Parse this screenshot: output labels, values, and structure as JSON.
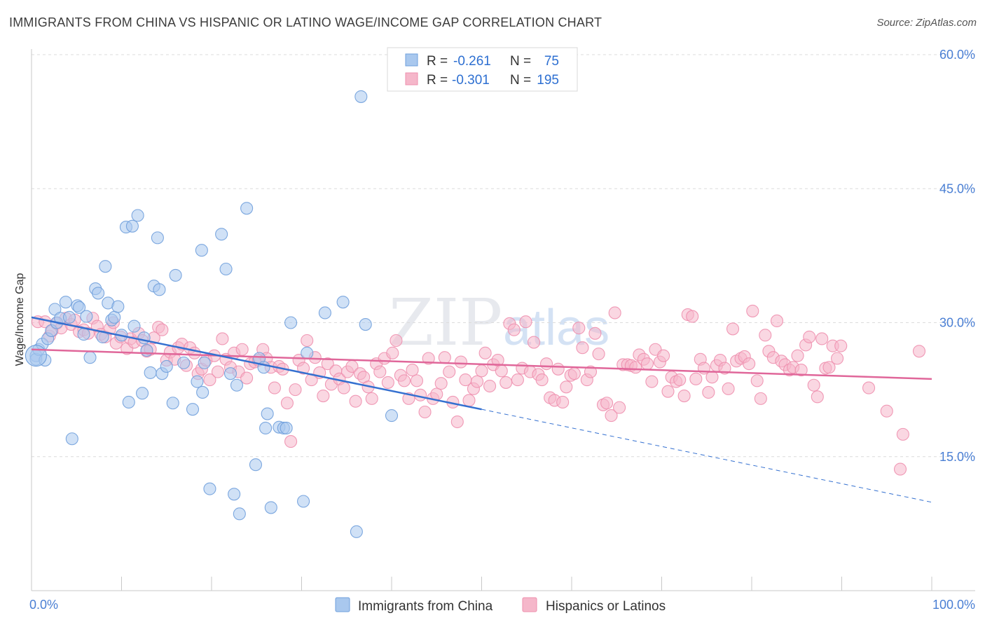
{
  "title": "IMMIGRANTS FROM CHINA VS HISPANIC OR LATINO WAGE/INCOME GAP CORRELATION CHART",
  "source": "Source: ZipAtlas.com",
  "watermark": {
    "zip": "ZIP",
    "atlas": "atlas"
  },
  "colors": {
    "china_fill": "#a9c8ee",
    "china_stroke": "#6f9fdc",
    "china_line": "#3470d0",
    "hisp_fill": "#f5b7ca",
    "hisp_stroke": "#ee8fae",
    "hisp_line": "#e0679a",
    "grid": "#dcdcdc",
    "tick_label": "#4a7fd4"
  },
  "legend": {
    "rows": [
      {
        "r_label": "R =",
        "r_value": "-0.261",
        "n_label": "N =",
        "n_value": "75"
      },
      {
        "r_label": "R =",
        "r_value": "-0.301",
        "n_label": "N =",
        "n_value": "195"
      }
    ]
  },
  "chart_data": {
    "type": "scatter",
    "title": "IMMIGRANTS FROM CHINA VS HISPANIC OR LATINO WAGE/INCOME GAP CORRELATION CHART",
    "xlabel": "",
    "ylabel": "Wage/Income Gap",
    "xlim": [
      0,
      100
    ],
    "ylim": [
      0,
      60
    ],
    "x_tick_labels": [
      "0.0%",
      "100.0%"
    ],
    "y_ticks": [
      15,
      30,
      45,
      60
    ],
    "y_tick_labels": [
      "15.0%",
      "30.0%",
      "45.0%",
      "60.0%"
    ],
    "grid": true,
    "legend_position": "top-center",
    "series": [
      {
        "name": "Immigrants from China",
        "R": -0.261,
        "N": 75,
        "trend": {
          "x": [
            0,
            50
          ],
          "y": [
            30.6,
            20.3
          ],
          "extended_x": [
            50,
            100
          ],
          "extended_y": [
            20.3,
            9.9
          ]
        },
        "points": [
          [
            0.5,
            26.3
          ],
          [
            0.5,
            25.9
          ],
          [
            0.8,
            27.0
          ],
          [
            1.2,
            27.6
          ],
          [
            1.5,
            25.8
          ],
          [
            1.8,
            28.2
          ],
          [
            2.2,
            29.1
          ],
          [
            2.6,
            31.5
          ],
          [
            2.8,
            30.0
          ],
          [
            3.2,
            30.5
          ],
          [
            3.8,
            32.3
          ],
          [
            4.2,
            30.6
          ],
          [
            4.5,
            17.0
          ],
          [
            5.1,
            31.9
          ],
          [
            5.3,
            31.7
          ],
          [
            5.8,
            28.7
          ],
          [
            6.1,
            30.7
          ],
          [
            6.5,
            26.1
          ],
          [
            7.1,
            33.8
          ],
          [
            7.4,
            33.3
          ],
          [
            7.9,
            28.4
          ],
          [
            8.2,
            36.3
          ],
          [
            8.5,
            32.2
          ],
          [
            8.9,
            30.3
          ],
          [
            9.2,
            30.6
          ],
          [
            9.6,
            31.8
          ],
          [
            10.0,
            28.6
          ],
          [
            10.5,
            40.7
          ],
          [
            10.8,
            21.1
          ],
          [
            11.2,
            40.8
          ],
          [
            11.4,
            29.6
          ],
          [
            11.8,
            42.0
          ],
          [
            12.3,
            22.1
          ],
          [
            12.5,
            28.3
          ],
          [
            12.8,
            26.9
          ],
          [
            13.2,
            24.4
          ],
          [
            13.6,
            34.1
          ],
          [
            14.0,
            39.5
          ],
          [
            14.2,
            33.7
          ],
          [
            14.5,
            24.3
          ],
          [
            15.0,
            25.1
          ],
          [
            15.7,
            21.0
          ],
          [
            16.0,
            35.3
          ],
          [
            16.9,
            25.5
          ],
          [
            17.9,
            20.3
          ],
          [
            18.4,
            23.4
          ],
          [
            18.9,
            38.1
          ],
          [
            19.0,
            22.2
          ],
          [
            19.2,
            25.5
          ],
          [
            19.8,
            11.4
          ],
          [
            21.1,
            39.9
          ],
          [
            21.6,
            36.0
          ],
          [
            22.1,
            24.3
          ],
          [
            22.5,
            10.8
          ],
          [
            22.8,
            23.0
          ],
          [
            23.1,
            8.6
          ],
          [
            23.9,
            42.8
          ],
          [
            24.9,
            14.1
          ],
          [
            25.3,
            26.0
          ],
          [
            25.8,
            25.0
          ],
          [
            26.0,
            18.2
          ],
          [
            26.2,
            19.8
          ],
          [
            26.6,
            9.3
          ],
          [
            27.5,
            18.3
          ],
          [
            28.0,
            18.2
          ],
          [
            28.3,
            18.2
          ],
          [
            28.8,
            30.0
          ],
          [
            30.2,
            10.0
          ],
          [
            30.6,
            26.6
          ],
          [
            32.6,
            31.1
          ],
          [
            34.6,
            32.3
          ],
          [
            36.1,
            6.6
          ],
          [
            36.6,
            55.3
          ],
          [
            37.1,
            29.8
          ],
          [
            40.0,
            19.6
          ]
        ]
      },
      {
        "name": "Hispanics or Latinos",
        "R": -0.301,
        "N": 195,
        "trend": {
          "x": [
            0,
            100
          ],
          "y": [
            27.0,
            23.7
          ]
        },
        "points": [
          [
            0.7,
            30.1
          ],
          [
            1.5,
            30.1
          ],
          [
            2.0,
            28.5
          ],
          [
            2.3,
            29.1
          ],
          [
            2.8,
            29.9
          ],
          [
            3.3,
            29.4
          ],
          [
            3.8,
            30.5
          ],
          [
            4.4,
            29.8
          ],
          [
            4.8,
            30.3
          ],
          [
            5.3,
            29.0
          ],
          [
            5.8,
            29.2
          ],
          [
            6.3,
            28.8
          ],
          [
            6.8,
            30.5
          ],
          [
            7.3,
            29.6
          ],
          [
            7.7,
            28.7
          ],
          [
            8.2,
            28.4
          ],
          [
            8.7,
            29.3
          ],
          [
            9.1,
            30.0
          ],
          [
            9.4,
            27.7
          ],
          [
            9.9,
            28.4
          ],
          [
            10.6,
            27.1
          ],
          [
            11.0,
            28.2
          ],
          [
            11.4,
            27.8
          ],
          [
            11.9,
            28.8
          ],
          [
            12.3,
            28.0
          ],
          [
            12.8,
            26.8
          ],
          [
            13.2,
            27.0
          ],
          [
            13.6,
            28.3
          ],
          [
            14.1,
            29.5
          ],
          [
            14.5,
            29.2
          ],
          [
            15.0,
            25.8
          ],
          [
            15.4,
            26.7
          ],
          [
            15.9,
            25.9
          ],
          [
            16.3,
            27.2
          ],
          [
            16.7,
            27.6
          ],
          [
            17.2,
            25.2
          ],
          [
            17.6,
            27.2
          ],
          [
            18.1,
            26.6
          ],
          [
            18.5,
            24.3
          ],
          [
            18.9,
            24.8
          ],
          [
            19.4,
            25.8
          ],
          [
            19.8,
            23.6
          ],
          [
            20.3,
            26.3
          ],
          [
            20.7,
            24.5
          ],
          [
            21.2,
            28.2
          ],
          [
            21.6,
            25.9
          ],
          [
            22.1,
            25.0
          ],
          [
            22.5,
            26.6
          ],
          [
            23.0,
            24.5
          ],
          [
            23.4,
            27.0
          ],
          [
            23.9,
            23.8
          ],
          [
            24.3,
            25.4
          ],
          [
            24.8,
            25.6
          ],
          [
            25.2,
            25.8
          ],
          [
            25.7,
            27.0
          ],
          [
            26.1,
            26.0
          ],
          [
            26.6,
            25.0
          ],
          [
            27.0,
            22.7
          ],
          [
            27.5,
            25.1
          ],
          [
            27.9,
            24.8
          ],
          [
            28.4,
            21.0
          ],
          [
            28.8,
            16.7
          ],
          [
            29.3,
            22.5
          ],
          [
            29.7,
            25.8
          ],
          [
            30.2,
            24.9
          ],
          [
            30.6,
            28.0
          ],
          [
            31.1,
            23.6
          ],
          [
            31.5,
            26.1
          ],
          [
            32.0,
            24.4
          ],
          [
            32.4,
            21.8
          ],
          [
            32.9,
            25.4
          ],
          [
            33.3,
            23.1
          ],
          [
            33.8,
            24.6
          ],
          [
            34.2,
            23.7
          ],
          [
            34.7,
            22.7
          ],
          [
            35.1,
            24.5
          ],
          [
            35.6,
            25.1
          ],
          [
            36.0,
            21.2
          ],
          [
            36.5,
            24.3
          ],
          [
            36.9,
            23.9
          ],
          [
            37.4,
            22.8
          ],
          [
            37.8,
            21.5
          ],
          [
            38.3,
            25.4
          ],
          [
            38.7,
            24.5
          ],
          [
            39.2,
            26.0
          ],
          [
            39.6,
            23.3
          ],
          [
            40.1,
            26.6
          ],
          [
            40.5,
            28.0
          ],
          [
            41.0,
            24.1
          ],
          [
            41.4,
            23.5
          ],
          [
            41.9,
            21.5
          ],
          [
            42.3,
            24.7
          ],
          [
            42.8,
            23.5
          ],
          [
            43.2,
            21.9
          ],
          [
            43.7,
            20.0
          ],
          [
            44.1,
            26.0
          ],
          [
            44.6,
            21.5
          ],
          [
            45.0,
            22.0
          ],
          [
            45.5,
            23.2
          ],
          [
            45.9,
            26.1
          ],
          [
            46.4,
            24.5
          ],
          [
            46.8,
            21.1
          ],
          [
            47.3,
            18.9
          ],
          [
            47.7,
            25.6
          ],
          [
            48.2,
            23.6
          ],
          [
            48.6,
            21.3
          ],
          [
            49.1,
            22.6
          ],
          [
            49.5,
            23.4
          ],
          [
            50.0,
            24.6
          ],
          [
            50.4,
            26.6
          ],
          [
            50.9,
            22.9
          ],
          [
            51.3,
            25.3
          ],
          [
            51.8,
            25.8
          ],
          [
            52.2,
            24.6
          ],
          [
            52.7,
            23.3
          ],
          [
            53.1,
            29.9
          ],
          [
            53.6,
            29.2
          ],
          [
            54.0,
            23.6
          ],
          [
            54.5,
            24.9
          ],
          [
            54.9,
            30.1
          ],
          [
            55.4,
            24.5
          ],
          [
            55.8,
            27.8
          ],
          [
            56.3,
            24.2
          ],
          [
            56.7,
            23.6
          ],
          [
            57.2,
            25.4
          ],
          [
            57.6,
            21.6
          ],
          [
            58.1,
            21.3
          ],
          [
            58.5,
            24.8
          ],
          [
            59.0,
            21.1
          ],
          [
            59.4,
            22.8
          ],
          [
            59.9,
            24.1
          ],
          [
            60.3,
            24.3
          ],
          [
            60.8,
            29.4
          ],
          [
            61.2,
            27.2
          ],
          [
            61.7,
            23.6
          ],
          [
            62.1,
            24.5
          ],
          [
            62.6,
            28.8
          ],
          [
            63.0,
            26.5
          ],
          [
            63.5,
            20.8
          ],
          [
            63.9,
            21.0
          ],
          [
            64.4,
            19.6
          ],
          [
            64.8,
            31.1
          ],
          [
            65.3,
            20.5
          ],
          [
            65.7,
            25.3
          ],
          [
            66.2,
            25.3
          ],
          [
            66.6,
            25.2
          ],
          [
            67.1,
            25.0
          ],
          [
            67.5,
            26.4
          ],
          [
            68.0,
            25.9
          ],
          [
            68.4,
            25.4
          ],
          [
            68.9,
            23.4
          ],
          [
            69.3,
            27.0
          ],
          [
            69.8,
            25.6
          ],
          [
            70.2,
            26.3
          ],
          [
            70.7,
            22.3
          ],
          [
            71.1,
            23.9
          ],
          [
            71.6,
            23.4
          ],
          [
            72.0,
            23.6
          ],
          [
            72.5,
            21.8
          ],
          [
            72.9,
            30.9
          ],
          [
            73.4,
            30.7
          ],
          [
            73.8,
            23.7
          ],
          [
            74.3,
            25.9
          ],
          [
            74.7,
            24.9
          ],
          [
            75.2,
            22.2
          ],
          [
            75.6,
            23.9
          ],
          [
            76.1,
            25.2
          ],
          [
            76.5,
            25.8
          ],
          [
            77.0,
            24.9
          ],
          [
            77.4,
            22.6
          ],
          [
            77.9,
            29.3
          ],
          [
            78.3,
            25.7
          ],
          [
            78.8,
            26.0
          ],
          [
            79.2,
            26.2
          ],
          [
            79.7,
            25.4
          ],
          [
            80.1,
            31.3
          ],
          [
            80.6,
            23.5
          ],
          [
            81.0,
            21.5
          ],
          [
            81.5,
            28.6
          ],
          [
            81.9,
            26.8
          ],
          [
            82.4,
            26.1
          ],
          [
            82.8,
            30.2
          ],
          [
            83.3,
            25.7
          ],
          [
            83.7,
            25.3
          ],
          [
            84.2,
            24.7
          ],
          [
            84.6,
            25.0
          ],
          [
            85.1,
            26.3
          ],
          [
            85.5,
            24.7
          ],
          [
            86.0,
            27.5
          ],
          [
            86.4,
            28.4
          ],
          [
            86.9,
            23.0
          ],
          [
            87.3,
            21.7
          ],
          [
            87.8,
            28.2
          ],
          [
            88.2,
            24.9
          ],
          [
            88.6,
            25.0
          ],
          [
            89.0,
            27.4
          ],
          [
            89.5,
            26.0
          ],
          [
            89.9,
            27.4
          ],
          [
            93.0,
            22.7
          ],
          [
            95.0,
            20.1
          ],
          [
            96.5,
            13.6
          ],
          [
            96.8,
            17.5
          ],
          [
            98.6,
            26.8
          ]
        ]
      }
    ]
  },
  "bottom_legend": [
    {
      "label": "Immigrants from China"
    },
    {
      "label": "Hispanics or Latinos"
    }
  ]
}
